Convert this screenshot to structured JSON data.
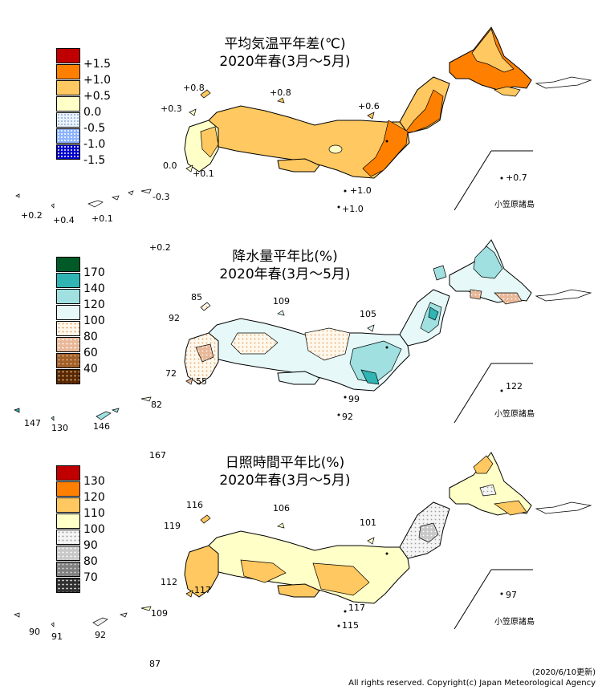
{
  "panels": [
    {
      "title_line1": "平均気温平年差(℃)",
      "title_line2": "2020年春(3月～5月)",
      "legend": [
        {
          "label": "+1.5",
          "color": "#c00000"
        },
        {
          "label": "+1.0",
          "color": "#ff8000"
        },
        {
          "label": "+0.5",
          "color": "#ffc860"
        },
        {
          "label": "0.0",
          "color": "#ffffc8"
        },
        {
          "label": "-0.5",
          "color": "#e8f4ff"
        },
        {
          "label": "-1.0",
          "color": "#8cb4ff"
        },
        {
          "label": "-1.5",
          "color": "#0000cc"
        }
      ],
      "values": [
        "+0.8",
        "+0.8",
        "+0.3",
        "+0.6",
        "0.0",
        "+0.1",
        "+1.0",
        "+1.0",
        "+0.7",
        "-0.3",
        "+0.2",
        "+0.4",
        "+0.1",
        "+0.2"
      ],
      "islands_label": "小笠原諸島"
    },
    {
      "title_line1": "降水量平年比(%)",
      "title_line2": "2020年春(3月～5月)",
      "legend": [
        {
          "label": "170",
          "color": "#005a28"
        },
        {
          "label": "140",
          "color": "#30b4b4"
        },
        {
          "label": "120",
          "color": "#a0e0e0"
        },
        {
          "label": "100",
          "color": "#e6f8f8"
        },
        {
          "label": "80",
          "color": "#fff8ec"
        },
        {
          "label": "60",
          "color": "#e8b898"
        },
        {
          "label": "40",
          "color": "#a06028"
        },
        {
          "label": "",
          "color": "#5a2800"
        }
      ],
      "values": [
        "85",
        "109",
        "92",
        "105",
        "72",
        "55",
        "99",
        "92",
        "122",
        "147",
        "130",
        "146",
        "82",
        "167"
      ],
      "islands_label": "小笠原諸島"
    },
    {
      "title_line1": "日照時間平年比(%)",
      "title_line2": "2020年春(3月～5月)",
      "legend": [
        {
          "label": "130",
          "color": "#c00000"
        },
        {
          "label": "120",
          "color": "#ff8000"
        },
        {
          "label": "110",
          "color": "#ffc860"
        },
        {
          "label": "100",
          "color": "#ffffc8"
        },
        {
          "label": "90",
          "color": "#f0f0f0"
        },
        {
          "label": "80",
          "color": "#c8c8c8"
        },
        {
          "label": "70",
          "color": "#808080"
        },
        {
          "label": "",
          "color": "#303030"
        }
      ],
      "values": [
        "116",
        "106",
        "119",
        "101",
        "112",
        "117",
        "117",
        "115",
        "97",
        "109",
        "90",
        "91",
        "92",
        "87"
      ],
      "islands_label": "小笠原諸島"
    }
  ],
  "footer": {
    "update": "(2020/6/10更新)",
    "copyright": "All rights reserved. Copyright(c) Japan Meteorological Agency"
  }
}
